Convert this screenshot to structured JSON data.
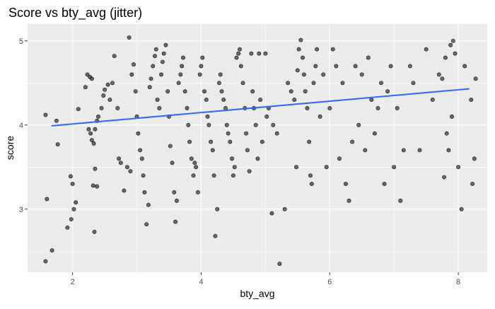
{
  "chart_data": {
    "type": "scatter",
    "title": "Score vs bty_avg (jitter)",
    "xlabel": "bty_avg",
    "ylabel": "score",
    "xlim": [
      1.3,
      8.45
    ],
    "ylim": [
      2.25,
      5.2
    ],
    "x_ticks": [
      {
        "value": 2,
        "label": "2"
      },
      {
        "value": 4,
        "label": "4"
      },
      {
        "value": 6,
        "label": "6"
      },
      {
        "value": 8,
        "label": "8"
      }
    ],
    "y_ticks": [
      {
        "value": 3,
        "label": "3"
      },
      {
        "value": 4,
        "label": "4"
      },
      {
        "value": 5,
        "label": "5"
      }
    ],
    "grid": true,
    "background_color": "#EBEBEB",
    "grid_color": "#FFFFFF",
    "point_color": "#333333",
    "trend_color": "#3366FF",
    "trend_line": {
      "x": [
        1.67,
        8.17
      ],
      "y": [
        3.99,
        4.43
      ]
    },
    "points": [
      [
        1.58,
        4.12
      ],
      [
        1.6,
        3.12
      ],
      [
        1.58,
        2.38
      ],
      [
        1.68,
        2.51
      ],
      [
        1.75,
        4.05
      ],
      [
        1.77,
        3.77
      ],
      [
        1.92,
        2.78
      ],
      [
        1.97,
        3.39
      ],
      [
        2.0,
        3.3
      ],
      [
        2.02,
        3.0
      ],
      [
        1.98,
        2.88
      ],
      [
        2.05,
        3.08
      ],
      [
        2.09,
        4.19
      ],
      [
        2.2,
        4.45
      ],
      [
        2.23,
        4.6
      ],
      [
        2.27,
        4.57
      ],
      [
        2.3,
        4.55
      ],
      [
        2.25,
        3.95
      ],
      [
        2.28,
        3.9
      ],
      [
        2.3,
        3.82
      ],
      [
        2.33,
        3.78
      ],
      [
        2.35,
        3.95
      ],
      [
        2.38,
        4.05
      ],
      [
        2.4,
        4.1
      ],
      [
        2.32,
        3.28
      ],
      [
        2.34,
        2.73
      ],
      [
        2.38,
        3.27
      ],
      [
        2.35,
        3.48
      ],
      [
        2.45,
        4.2
      ],
      [
        2.48,
        4.35
      ],
      [
        2.5,
        4.42
      ],
      [
        2.55,
        4.48
      ],
      [
        2.58,
        4.3
      ],
      [
        2.62,
        4.5
      ],
      [
        2.65,
        4.82
      ],
      [
        2.7,
        4.2
      ],
      [
        2.72,
        3.6
      ],
      [
        2.75,
        3.55
      ],
      [
        2.8,
        3.22
      ],
      [
        2.85,
        3.5
      ],
      [
        2.9,
        3.45
      ],
      [
        2.88,
        5.04
      ],
      [
        2.92,
        4.6
      ],
      [
        2.95,
        4.72
      ],
      [
        2.98,
        4.4
      ],
      [
        3.0,
        4.1
      ],
      [
        3.02,
        3.9
      ],
      [
        3.05,
        3.7
      ],
      [
        3.08,
        3.6
      ],
      [
        3.1,
        3.4
      ],
      [
        3.12,
        3.2
      ],
      [
        3.15,
        2.82
      ],
      [
        3.18,
        3.05
      ],
      [
        3.2,
        4.45
      ],
      [
        3.22,
        4.55
      ],
      [
        3.25,
        4.7
      ],
      [
        3.28,
        4.82
      ],
      [
        3.3,
        4.9
      ],
      [
        3.32,
        4.3
      ],
      [
        3.35,
        4.2
      ],
      [
        3.38,
        4.6
      ],
      [
        3.4,
        4.75
      ],
      [
        3.42,
        4.85
      ],
      [
        3.45,
        4.95
      ],
      [
        3.48,
        4.4
      ],
      [
        3.5,
        4.1
      ],
      [
        3.52,
        3.75
      ],
      [
        3.55,
        3.55
      ],
      [
        3.58,
        3.2
      ],
      [
        3.6,
        2.85
      ],
      [
        3.62,
        3.1
      ],
      [
        3.65,
        4.5
      ],
      [
        3.68,
        4.6
      ],
      [
        3.7,
        4.7
      ],
      [
        3.72,
        4.8
      ],
      [
        3.75,
        4.4
      ],
      [
        3.78,
        4.2
      ],
      [
        3.8,
        4.0
      ],
      [
        3.82,
        3.8
      ],
      [
        3.85,
        3.6
      ],
      [
        3.88,
        3.4
      ],
      [
        3.9,
        3.55
      ],
      [
        3.92,
        3.5
      ],
      [
        3.95,
        3.2
      ],
      [
        3.98,
        4.6
      ],
      [
        4.0,
        4.7
      ],
      [
        4.02,
        4.8
      ],
      [
        4.05,
        4.4
      ],
      [
        4.08,
        4.3
      ],
      [
        4.1,
        4.1
      ],
      [
        4.12,
        4.0
      ],
      [
        4.15,
        3.8
      ],
      [
        4.18,
        3.7
      ],
      [
        4.2,
        3.4
      ],
      [
        4.22,
        2.68
      ],
      [
        4.25,
        3.0
      ],
      [
        4.28,
        4.5
      ],
      [
        4.3,
        4.6
      ],
      [
        4.32,
        4.4
      ],
      [
        4.35,
        4.3
      ],
      [
        4.38,
        4.2
      ],
      [
        4.4,
        4.0
      ],
      [
        4.42,
        3.9
      ],
      [
        4.45,
        3.8
      ],
      [
        4.48,
        3.6
      ],
      [
        4.5,
        3.4
      ],
      [
        4.52,
        3.5
      ],
      [
        4.55,
        4.8
      ],
      [
        4.58,
        4.85
      ],
      [
        4.6,
        4.9
      ],
      [
        4.62,
        4.7
      ],
      [
        4.65,
        4.5
      ],
      [
        4.68,
        4.2
      ],
      [
        4.7,
        3.9
      ],
      [
        4.72,
        3.7
      ],
      [
        4.75,
        3.45
      ],
      [
        4.78,
        4.85
      ],
      [
        4.8,
        4.4
      ],
      [
        4.82,
        4.2
      ],
      [
        4.85,
        4.0
      ],
      [
        4.88,
        3.6
      ],
      [
        4.9,
        4.85
      ],
      [
        4.92,
        4.3
      ],
      [
        4.95,
        3.8
      ],
      [
        5.0,
        4.85
      ],
      [
        5.02,
        4.1
      ],
      [
        5.05,
        4.2
      ],
      [
        5.1,
        2.95
      ],
      [
        5.12,
        4.0
      ],
      [
        5.18,
        3.9
      ],
      [
        5.22,
        2.35
      ],
      [
        5.3,
        3.0
      ],
      [
        5.35,
        4.5
      ],
      [
        5.4,
        4.4
      ],
      [
        5.45,
        4.3
      ],
      [
        5.48,
        3.5
      ],
      [
        5.5,
        4.65
      ],
      [
        5.52,
        4.9
      ],
      [
        5.55,
        5.01
      ],
      [
        5.58,
        4.8
      ],
      [
        5.6,
        4.6
      ],
      [
        5.62,
        4.4
      ],
      [
        5.65,
        4.2
      ],
      [
        5.68,
        3.8
      ],
      [
        5.7,
        3.4
      ],
      [
        5.72,
        3.3
      ],
      [
        5.75,
        4.5
      ],
      [
        5.78,
        4.7
      ],
      [
        5.8,
        4.9
      ],
      [
        5.85,
        4.1
      ],
      [
        5.9,
        4.6
      ],
      [
        5.95,
        3.5
      ],
      [
        6.0,
        4.2
      ],
      [
        6.05,
        4.9
      ],
      [
        6.1,
        4.7
      ],
      [
        6.15,
        3.6
      ],
      [
        6.2,
        4.5
      ],
      [
        6.25,
        3.3
      ],
      [
        6.3,
        3.1
      ],
      [
        6.35,
        3.8
      ],
      [
        6.4,
        4.7
      ],
      [
        6.45,
        4.0
      ],
      [
        6.5,
        4.6
      ],
      [
        6.55,
        3.7
      ],
      [
        6.6,
        4.8
      ],
      [
        6.65,
        4.3
      ],
      [
        6.7,
        3.9
      ],
      [
        6.75,
        4.2
      ],
      [
        6.8,
        4.5
      ],
      [
        6.85,
        3.3
      ],
      [
        6.9,
        4.4
      ],
      [
        6.95,
        4.7
      ],
      [
        7.0,
        3.5
      ],
      [
        7.05,
        4.2
      ],
      [
        7.1,
        3.1
      ],
      [
        7.15,
        3.7
      ],
      [
        7.25,
        4.7
      ],
      [
        7.3,
        4.5
      ],
      [
        7.4,
        3.7
      ],
      [
        7.5,
        4.9
      ],
      [
        7.6,
        4.3
      ],
      [
        7.7,
        4.6
      ],
      [
        7.75,
        4.55
      ],
      [
        7.78,
        3.38
      ],
      [
        7.8,
        4.8
      ],
      [
        7.82,
        3.9
      ],
      [
        7.85,
        3.7
      ],
      [
        7.88,
        4.95
      ],
      [
        7.9,
        4.1
      ],
      [
        7.92,
        5.0
      ],
      [
        7.95,
        4.85
      ],
      [
        8.0,
        3.5
      ],
      [
        8.05,
        3.0
      ],
      [
        8.1,
        4.7
      ],
      [
        8.2,
        4.3
      ],
      [
        8.25,
        3.6
      ],
      [
        8.27,
        4.55
      ],
      [
        8.22,
        3.3
      ]
    ]
  }
}
